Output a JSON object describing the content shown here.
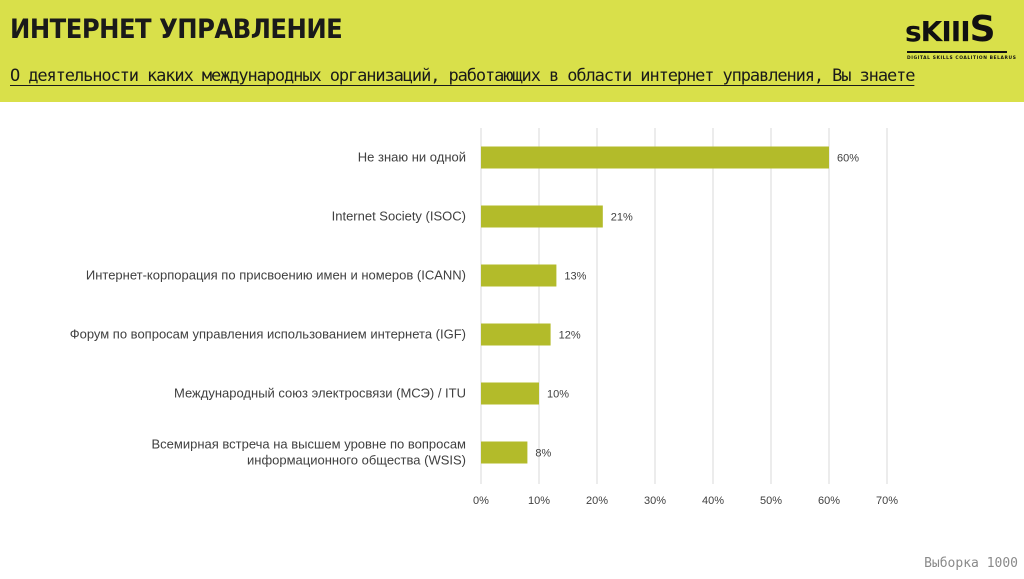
{
  "header": {
    "title": "ИНТЕРНЕТ УПРАВЛЕНИЕ",
    "subtitle": "О деятельности каких международных организаций, работающих в области интернет управления, Вы знаете"
  },
  "logo": {
    "word_small": "sKIII",
    "word_big": "S",
    "tagline": "DIGITAL SKILLS COALITION BELARUS"
  },
  "footer": {
    "sample": "Выборка 1000"
  },
  "colors": {
    "header_bg": "#d9e04a",
    "bar": "#b3bb2a",
    "grid": "#d9d9d9"
  },
  "chart_data": {
    "type": "bar",
    "orientation": "horizontal",
    "categories": [
      "Не знаю ни одной",
      "Internet Society (ISOC)",
      "Интернет-корпорация по присвоению имен и номеров (ICANN)",
      "Форум по вопросам управления использованием интернета (IGF)",
      "Международный союз электросвязи (МСЭ) / ITU",
      "Всемирная встреча на высшем уровне по вопросам информационного общества (WSIS)"
    ],
    "category_lines": [
      [
        "Не знаю ни одной"
      ],
      [
        "Internet Society (ISOC)"
      ],
      [
        "Интернет-корпорация по присвоению имен и номеров (ICANN)"
      ],
      [
        "Форум по вопросам управления использованием интернета (IGF)"
      ],
      [
        "Международный союз электросвязи (МСЭ) / ITU"
      ],
      [
        "Всемирная встреча на высшем уровне по вопросам",
        "информационного общества (WSIS)"
      ]
    ],
    "values": [
      60,
      21,
      13,
      12,
      10,
      8
    ],
    "data_labels": [
      "60%",
      "21%",
      "13%",
      "12%",
      "10%",
      "8%"
    ],
    "xlim": [
      0,
      70
    ],
    "x_ticks": [
      "0%",
      "10%",
      "20%",
      "30%",
      "40%",
      "50%",
      "60%",
      "70%"
    ],
    "grid": true,
    "legend": "none"
  }
}
